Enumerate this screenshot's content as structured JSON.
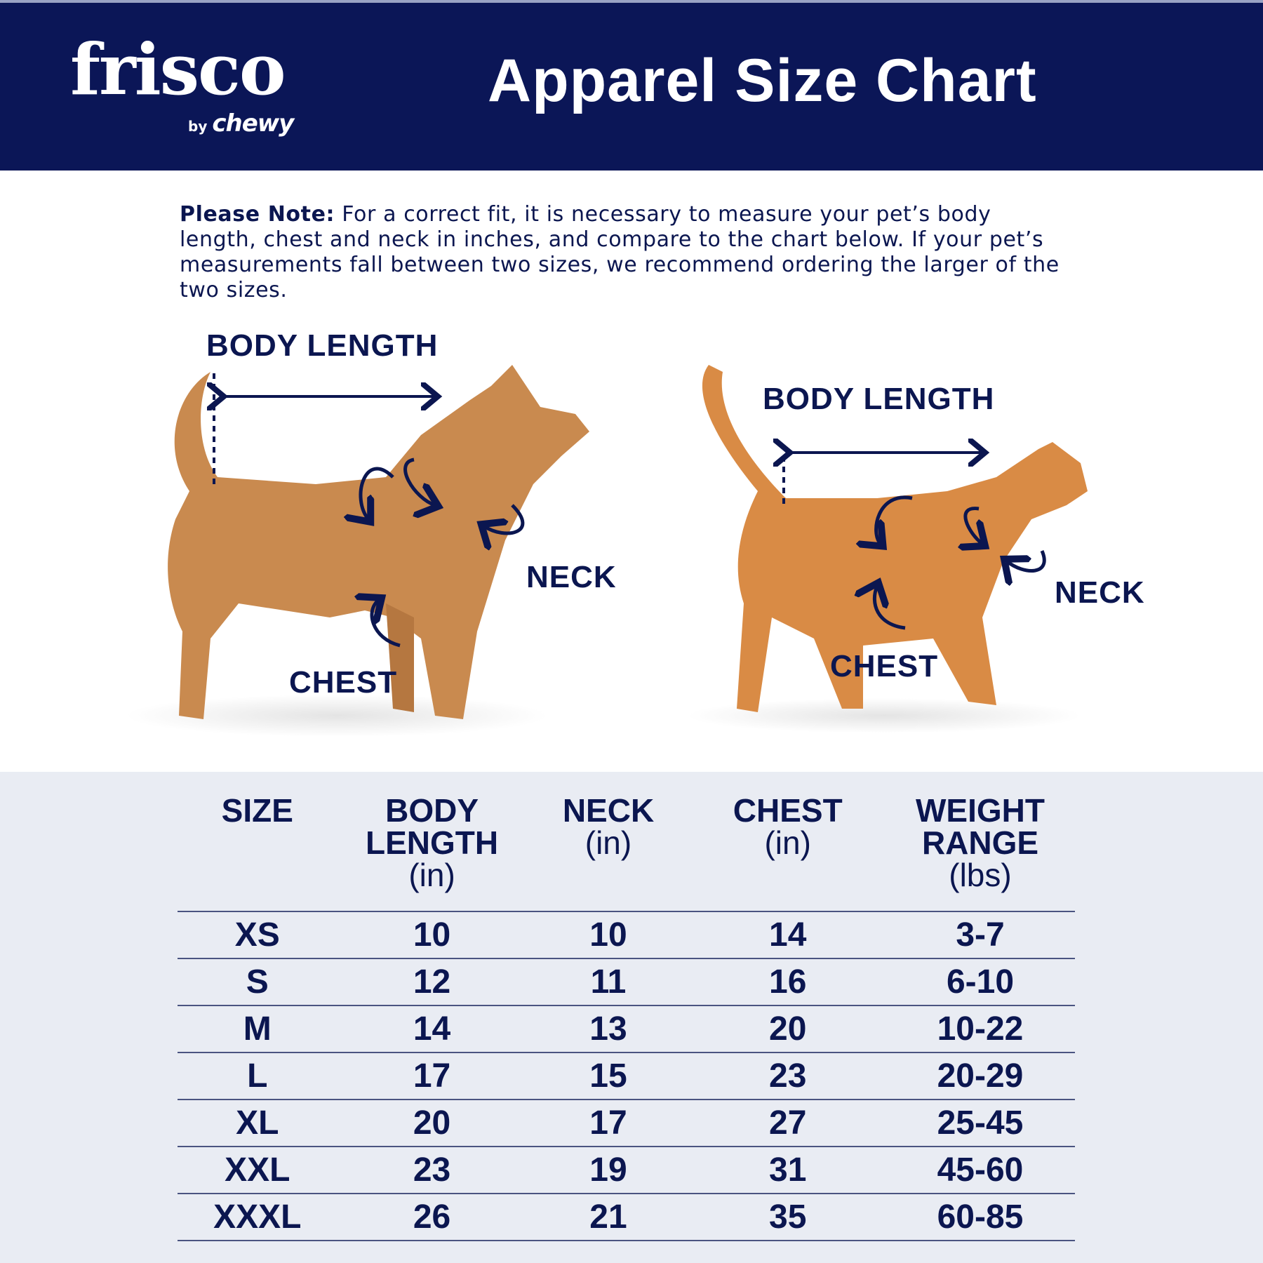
{
  "header": {
    "brand": "frisco",
    "brand_sub_by": "by",
    "brand_sub": "chewy",
    "title": "Apparel Size Chart",
    "bg_color": "#0b1657"
  },
  "note": {
    "label": "Please Note:",
    "text": " For a correct fit, it is necessary to measure your pet’s body length, chest and neck in inches, and compare to the chart below. If your pet’s measurements fall between two sizes, we recommend ordering the larger of the two sizes."
  },
  "dog": {
    "body_length": "BODY LENGTH",
    "neck": "NECK",
    "chest": "CHEST"
  },
  "cat": {
    "body_length": "BODY LENGTH",
    "neck": "NECK",
    "chest": "CHEST"
  },
  "table": {
    "headers": [
      {
        "title": "SIZE",
        "unit": ""
      },
      {
        "title": "BODY LENGTH",
        "unit": "(in)"
      },
      {
        "title": "NECK",
        "unit": "(in)"
      },
      {
        "title": "CHEST",
        "unit": "(in)"
      },
      {
        "title": "WEIGHT RANGE",
        "unit": "(lbs)"
      }
    ],
    "rows": [
      [
        "XS",
        "10",
        "10",
        "14",
        "3-7"
      ],
      [
        "S",
        "12",
        "11",
        "16",
        "6-10"
      ],
      [
        "M",
        "14",
        "13",
        "20",
        "10-22"
      ],
      [
        "L",
        "17",
        "15",
        "23",
        "20-29"
      ],
      [
        "XL",
        "20",
        "17",
        "27",
        "25-45"
      ],
      [
        "XXL",
        "23",
        "19",
        "31",
        "45-60"
      ],
      [
        "XXXL",
        "26",
        "21",
        "35",
        "60-85"
      ]
    ]
  }
}
